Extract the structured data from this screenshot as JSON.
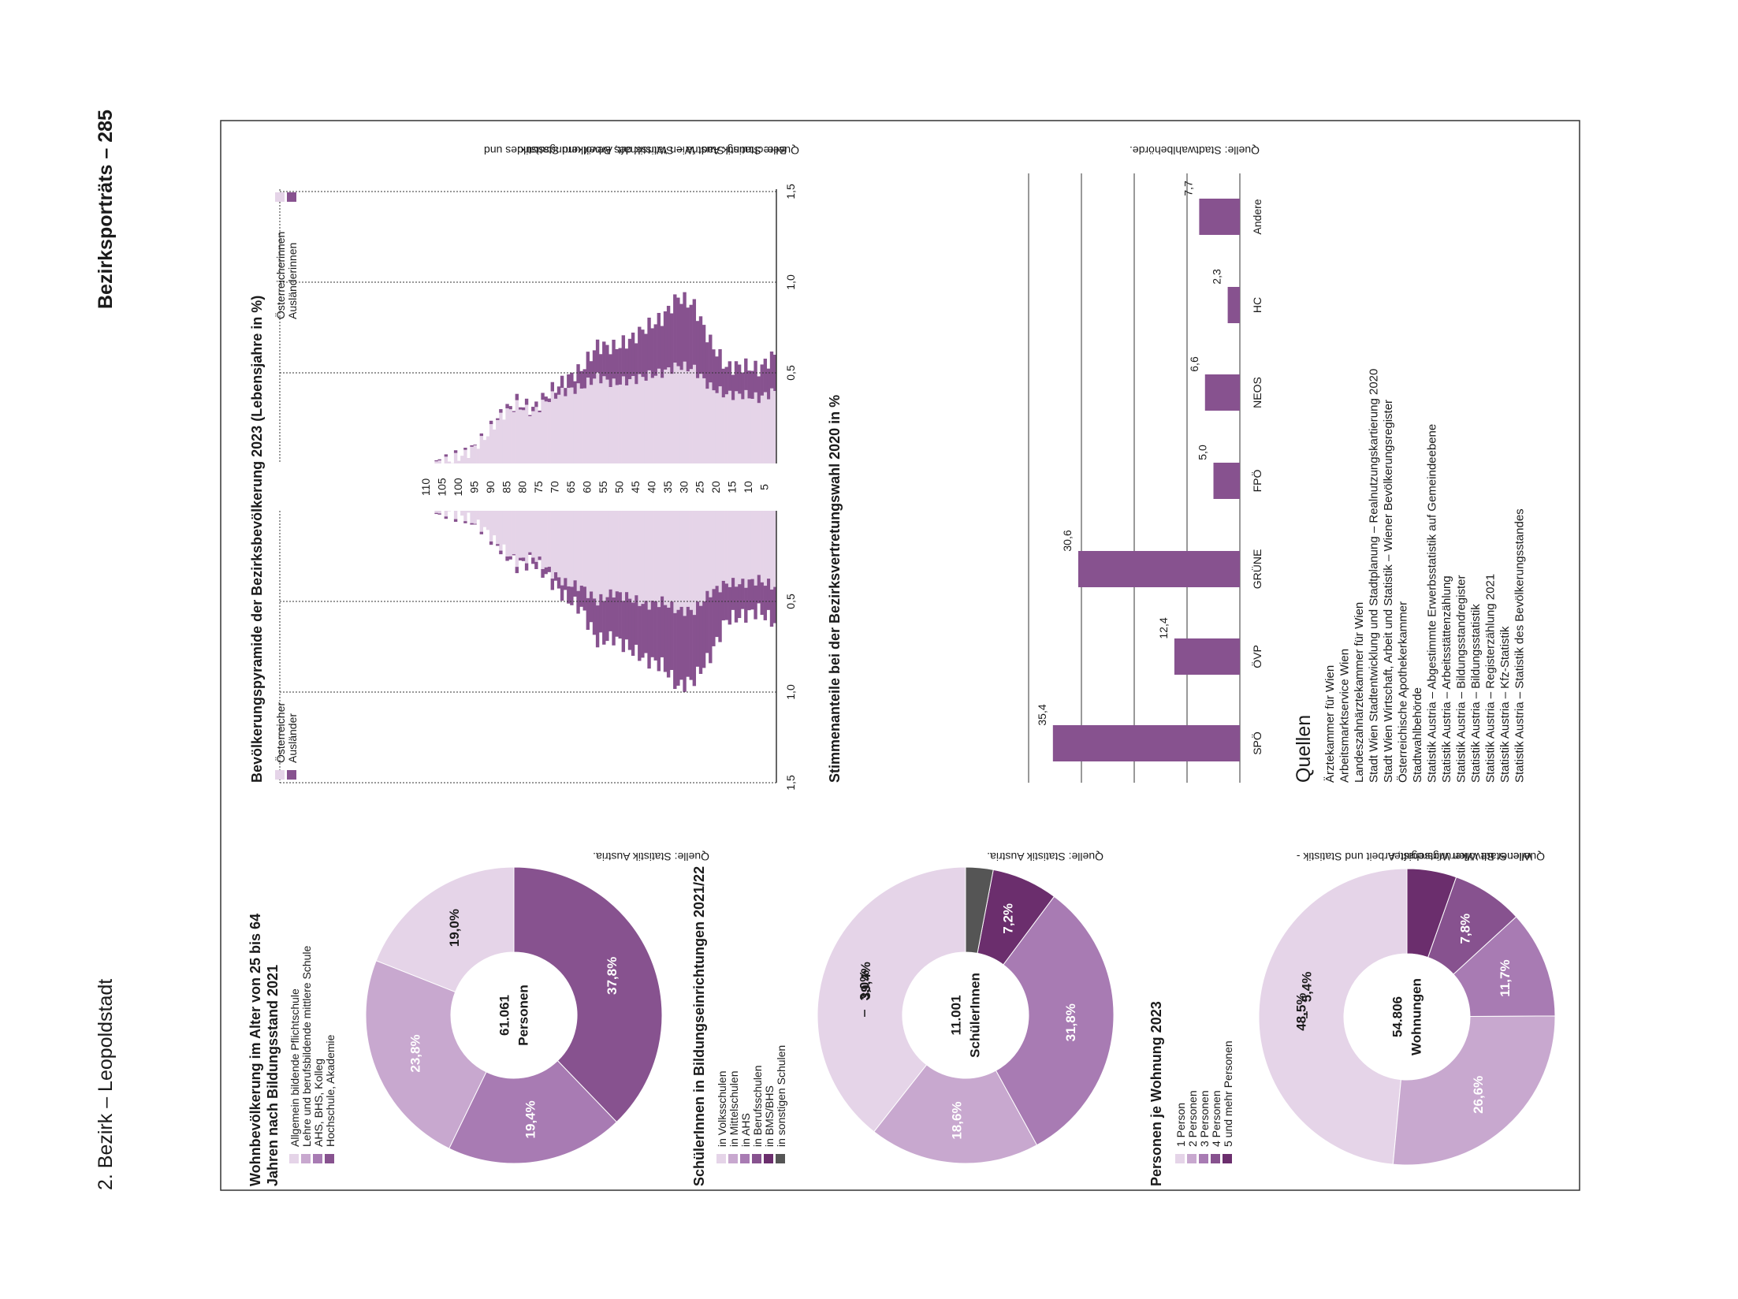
{
  "header": {
    "left": "2. Bezirk – Leopoldstadt",
    "right": "Bezirksporträts – 285"
  },
  "colors": {
    "c1": "#e5d4e8",
    "c2": "#c8a8cf",
    "c3": "#a87bb3",
    "c4": "#87528f",
    "c5": "#6b2e6d",
    "c6": "#555555",
    "frame": "#333333"
  },
  "bildung": {
    "title_l1": "Wohnbevölkerung im Alter von 25 bis 64",
    "title_l2": "Jahren nach Bildungsstand 2021",
    "legend": [
      "Allgemein bildende Pflichtschule",
      "Lehre und berufsbildende mittlere Schule",
      "AHS, BHS, Kolleg",
      "Hochschule, Akademie"
    ],
    "center_l1": "61.061",
    "center_l2": "Personen",
    "labels": [
      "19,0%",
      "23,8%",
      "19,4%",
      "37,8%"
    ],
    "source": "Quelle: Statistik Austria."
  },
  "schueler": {
    "title": "SchülerInnen in Bildungseinrichtungen 2021/22",
    "legend": [
      "in Volksschulen",
      "in Mittelschulen",
      "in AHS",
      "in Berufsschulen",
      "in BMS/BHS",
      "in sonstigen Schulen"
    ],
    "center_l1": "11.001",
    "center_l2": "SchülerInnen",
    "labels": [
      "39,4%",
      "18,6%",
      "31,8%",
      "7,2%",
      "3,0%"
    ],
    "source": "Quelle: Statistik Austria."
  },
  "wohnung": {
    "title": "Personen je Wohnung 2023",
    "legend": [
      "1 Person",
      "2 Personen",
      "3 Personen",
      "4 Personen",
      "5 und mehr Personen"
    ],
    "center_l1": "54.806",
    "center_l2": "Wohnungen",
    "labels": [
      "48,5%",
      "26,6%",
      "11,7%",
      "7,8%",
      "5,4%"
    ],
    "source_l1": "Quelle: Stadt Wien Wirtschaft, Arbeit und Statistik -",
    "source_l2": "Wiener Bevölkerungsregister."
  },
  "pyramid": {
    "title": "Bevölkerungspyramide der Bezirksbevölkerung 2023 (Lebensjahre in %)",
    "legend_left": [
      "Österreicher",
      "Ausländer"
    ],
    "legend_right": [
      "Österreicherinnen",
      "Ausländerinnen"
    ],
    "age_ticks": [
      "110",
      "105",
      "100",
      "95",
      "90",
      "85",
      "80",
      "75",
      "70",
      "65",
      "60",
      "55",
      "50",
      "45",
      "40",
      "35",
      "30",
      "25",
      "20",
      "15",
      "10",
      "5"
    ],
    "left_ticks": [
      "1,5",
      "1,0",
      "0,5"
    ],
    "right_ticks": [
      "0,5",
      "1,0",
      "1,5"
    ],
    "source_l1": "Quelle: Statistik Austria – Statistik des Bevölkerungsstandes und",
    "source_l2": "Berechnung Stadt Wien Wirtschaft, Arbeit und Statistik."
  },
  "election": {
    "title": "Stimmenanteile bei der Bezirksvertretungswahl 2020 in %",
    "source": "Quelle: Stadtwahlbehörde."
  },
  "chart_data": [
    {
      "type": "bar",
      "title": "Stimmenanteile bei der Bezirksvertretungswahl 2020 in %",
      "categories": [
        "SPÖ",
        "ÖVP",
        "GRÜNE",
        "FPÖ",
        "NEOS",
        "HC",
        "Andere"
      ],
      "values": [
        35.4,
        12.4,
        30.6,
        5.0,
        6.6,
        2.3,
        7.7
      ],
      "value_labels": [
        "35,4",
        "12,4",
        "30,6",
        "5,0",
        "6,6",
        "2,3",
        "7,7"
      ],
      "ylim": [
        0,
        40
      ]
    },
    {
      "type": "pie",
      "title": "Wohnbevölkerung im Alter von 25 bis 64 Jahren nach Bildungsstand 2021",
      "categories": [
        "Allgemein bildende Pflichtschule",
        "Lehre und berufsbildende mittlere Schule",
        "AHS, BHS, Kolleg",
        "Hochschule, Akademie"
      ],
      "values": [
        19.0,
        23.8,
        19.4,
        37.8
      ]
    },
    {
      "type": "pie",
      "title": "SchülerInnen in Bildungseinrichtungen 2021/22",
      "categories": [
        "in Volksschulen",
        "in Mittelschulen",
        "in AHS",
        "in Berufsschulen",
        "in BMS/BHS",
        "in sonstigen Schulen"
      ],
      "values": [
        39.4,
        18.6,
        31.8,
        0,
        7.2,
        3.0
      ]
    },
    {
      "type": "pie",
      "title": "Personen je Wohnung 2023",
      "categories": [
        "1 Person",
        "2 Personen",
        "3 Personen",
        "4 Personen",
        "5 und mehr Personen"
      ],
      "values": [
        48.5,
        26.6,
        11.7,
        7.8,
        5.4
      ]
    },
    {
      "type": "bar",
      "title": "Bevölkerungspyramide der Bezirksbevölkerung 2023 (Lebensjahre in %)",
      "x_label": "Lebensjahre",
      "age_groups": [
        0,
        5,
        10,
        15,
        20,
        25,
        30,
        35,
        40,
        45,
        50,
        55,
        60,
        65,
        70,
        75,
        80,
        85,
        90,
        95,
        100,
        105,
        110
      ],
      "series": [
        {
          "name": "Österreicher",
          "values": [
            0.42,
            0.38,
            0.4,
            0.4,
            0.45,
            0.55,
            0.55,
            0.5,
            0.52,
            0.48,
            0.45,
            0.5,
            0.42,
            0.4,
            0.33,
            0.25,
            0.28,
            0.2,
            0.1,
            0.04,
            0.01,
            0.0,
            0.0
          ]
        },
        {
          "name": "Ausländer",
          "values": [
            0.2,
            0.17,
            0.18,
            0.2,
            0.35,
            0.38,
            0.42,
            0.35,
            0.3,
            0.28,
            0.25,
            0.22,
            0.12,
            0.08,
            0.04,
            0.03,
            0.02,
            0.01,
            0.0,
            0.0,
            0.0,
            0.0,
            0.0
          ]
        },
        {
          "name": "Österreicherinnen",
          "values": [
            0.4,
            0.36,
            0.38,
            0.38,
            0.42,
            0.52,
            0.54,
            0.5,
            0.48,
            0.46,
            0.44,
            0.48,
            0.42,
            0.4,
            0.36,
            0.28,
            0.32,
            0.26,
            0.14,
            0.06,
            0.02,
            0.0,
            0.0
          ]
        },
        {
          "name": "Ausländerinnen",
          "values": [
            0.2,
            0.16,
            0.16,
            0.15,
            0.25,
            0.35,
            0.38,
            0.3,
            0.27,
            0.22,
            0.2,
            0.17,
            0.1,
            0.06,
            0.03,
            0.02,
            0.02,
            0.01,
            0.0,
            0.0,
            0.0,
            0.0,
            0.0
          ]
        }
      ],
      "ylim": [
        0,
        1.5
      ]
    }
  ],
  "quellen": {
    "title": "Quellen",
    "items": [
      "Ärztekammer für Wien",
      "Arbeitsmarktservice Wien",
      "Landeszahnärztekammer für Wien",
      "Stadt Wien Stadtentwicklung und Stadtplanung – Realnutzungskartierung 2020",
      "Stadt Wien Wirtschaft, Arbeit und Statistik – Wiener Bevölkerungsregister",
      "Österreichische Apothekerkammer",
      "Stadtwahlbehörde",
      "Statistik Austria – Abgestimmte Erwerbsstatistik auf Gemeindeebene",
      "Statistik Austria – Arbeitsstättenzählung",
      "Statistik Austria – Bildungsstandregister",
      "Statistik Austria – Bildungsstatistik",
      "Statistik Austria – Registerzählung 2021",
      "Statistik Austria – Kfz-Statistik",
      "Statistik Austria – Statistik des Bevölkerungsstandes"
    ]
  }
}
